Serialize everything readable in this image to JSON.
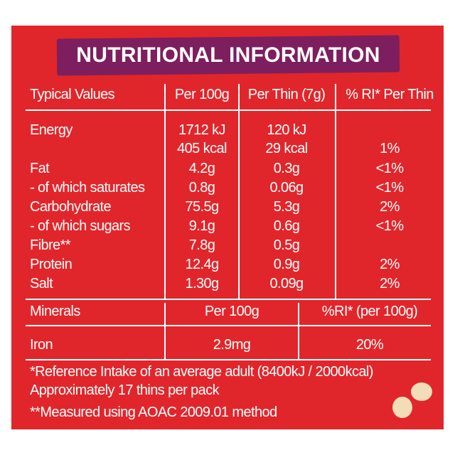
{
  "header": {
    "title": "NUTRITIONAL INFORMATION"
  },
  "table": {
    "columns": [
      "Typical Values",
      "Per 100g",
      "Per Thin (7g)",
      "% RI* Per Thin"
    ],
    "rows": [
      {
        "label": "Energy",
        "per_100g": "1712 kJ",
        "per_thin": "120 kJ"
      },
      {
        "per_100g": "405 kcal",
        "per_thin": "29 kcal",
        "ri": "1%"
      },
      {
        "label": "Fat",
        "per_100g": "4.2g",
        "per_thin": "0.3g",
        "ri": "<1%"
      },
      {
        "label": "- of which saturates",
        "per_100g": "0.8g",
        "per_thin": "0.06g",
        "ri": "<1%"
      },
      {
        "label": "Carbohydrate",
        "per_100g": "75.5g",
        "per_thin": "5.3g",
        "ri": "2%"
      },
      {
        "label": "- of which sugars",
        "per_100g": "9.1g",
        "per_thin": "0.6g",
        "ri": "<1%"
      },
      {
        "label": "Fibre**",
        "per_100g": "7.8g",
        "per_thin": "0.5g"
      },
      {
        "label": "Protein",
        "per_100g": "12.4g",
        "per_thin": "0.9g",
        "ri": "2%"
      },
      {
        "label": "Salt",
        "per_100g": "1.30g",
        "per_thin": "0.09g",
        "ri": "2%"
      }
    ]
  },
  "minerals": {
    "columns": [
      "Minerals",
      "Per 100g",
      "%RI* (per 100g)"
    ],
    "rows": [
      [
        "Iron",
        "2.9mg",
        "20%"
      ]
    ]
  },
  "footnotes": [
    "*Reference Intake of an average adult (8400kJ / 2000kcal)",
    "Approximately 17 thins per pack",
    "**Measured using AOAC 2009.01 method"
  ]
}
